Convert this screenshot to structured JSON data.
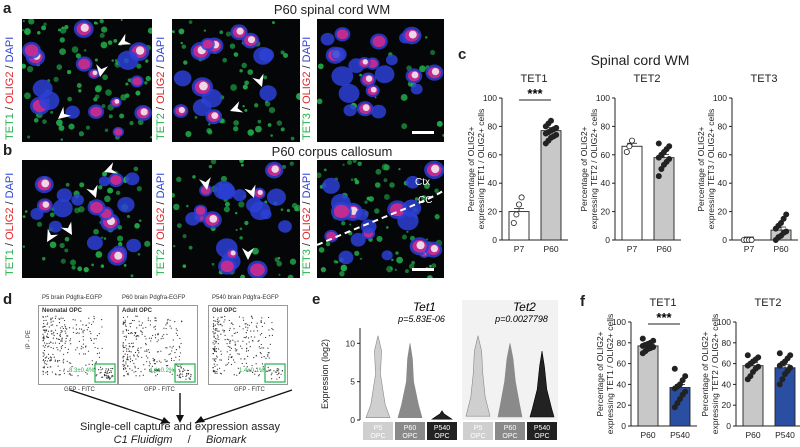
{
  "panels": {
    "a": {
      "letter": "a",
      "title": "P60 spinal cord WM",
      "labels": [
        {
          "g": "TET1",
          "r": "OLIG2",
          "b": "DAPI"
        },
        {
          "g": "TET2",
          "r": "OLIG2",
          "b": "DAPI"
        },
        {
          "g": "TET3",
          "r": "OLIG2",
          "b": "DAPI"
        }
      ]
    },
    "b": {
      "letter": "b",
      "title": "P60 corpus callosum",
      "labels": [
        {
          "g": "TET1",
          "r": "OLIG2",
          "b": "DAPI"
        },
        {
          "g": "TET2",
          "r": "OLIG2",
          "b": "DAPI"
        },
        {
          "g": "TET3",
          "r": "OLIG2",
          "b": "DAPI"
        }
      ],
      "ctx": "Ctx",
      "cc": "CC"
    },
    "c": {
      "letter": "c",
      "title": "Spinal cord WM"
    },
    "d": {
      "letter": "d",
      "plots": [
        {
          "header": "P5 brain Pdgfra-EGFP",
          "subtitle": "Neonatal OPC",
          "pct": "8.3±0.4%"
        },
        {
          "header": "P60 brain Pdgfra-EGFP",
          "subtitle": "Adult OPC",
          "pct": "4.4±0.2%"
        },
        {
          "header": "P540 brain Pdgfra-EGFP",
          "subtitle": "Old OPC",
          "pct": "1.4±0.1%"
        }
      ],
      "xaxis": "GFP - FITC",
      "yaxis": "IP - PE",
      "caption_line1": "Single-cell capture and expression assay",
      "caption_line2a": "C1 Fluidigm",
      "caption_sep": "/",
      "caption_line2b": "Biomark"
    },
    "e": {
      "letter": "e"
    },
    "f": {
      "letter": "f"
    }
  },
  "chart_data": [
    {
      "type": "bar",
      "panel": "c",
      "title": "TET1",
      "ylabel_line1": "Percentage of OLIG2+",
      "ylabel_line2": "expressing TET1 / OLIG2+ cells",
      "categories": [
        "P7",
        "P60"
      ],
      "values": [
        20,
        77
      ],
      "ylim": [
        0,
        100
      ],
      "yticks": [
        "0",
        "20",
        "40",
        "60",
        "80",
        "100"
      ],
      "significance": "***",
      "points": [
        [
          12,
          18,
          25,
          30
        ],
        [
          68,
          70,
          72,
          73,
          74,
          75,
          76,
          77,
          78,
          79,
          80,
          82,
          84
        ]
      ]
    },
    {
      "type": "bar",
      "panel": "c",
      "title": "TET2",
      "ylabel_line1": "Percentage of OLIG2+",
      "ylabel_line2": "expressing TET2 / OLIG2+ cells",
      "categories": [
        "P7",
        "P60"
      ],
      "values": [
        66,
        58
      ],
      "ylim": [
        0,
        100
      ],
      "yticks": [
        "0",
        "20",
        "40",
        "60",
        "80",
        "100"
      ],
      "points": [
        [
          62,
          66,
          70
        ],
        [
          45,
          50,
          53,
          55,
          57,
          58,
          60,
          62,
          64,
          66,
          68
        ]
      ]
    },
    {
      "type": "bar",
      "panel": "c",
      "title": "TET3",
      "ylabel_line1": "Percentage of OLIG2+",
      "ylabel_line2": "expressing TET3 / OLIG2+ cells",
      "categories": [
        "P7",
        "P60"
      ],
      "values": [
        0,
        7
      ],
      "ylim": [
        0,
        100
      ],
      "yticks": [
        "0",
        "20",
        "40",
        "60",
        "80",
        "100"
      ],
      "points": [
        [
          0,
          0,
          0,
          0
        ],
        [
          0,
          2,
          3,
          5,
          6,
          8,
          10,
          12,
          15,
          18
        ]
      ]
    },
    {
      "type": "violin",
      "panel": "e",
      "ylabel": "Expression (log2)",
      "ylim": [
        0,
        12
      ],
      "yticks": [
        "0",
        "5",
        "10"
      ],
      "groups": [
        {
          "title": "Tet1",
          "pvalue": "p=5.83E-06",
          "categories": [
            "P5 OPC",
            "P60 OPC",
            "P540 OPC"
          ]
        },
        {
          "title": "Tet2",
          "pvalue": "p=0.0027798",
          "categories": [
            "P5 OPC",
            "P60 OPC",
            "P540 OPC"
          ]
        }
      ]
    },
    {
      "type": "bar",
      "panel": "f",
      "title": "TET1",
      "ylabel_line1": "Percentage of OLIG2+",
      "ylabel_line2": "expressing TET1 / OLIG2+ cells",
      "categories": [
        "P60",
        "P540"
      ],
      "values": [
        77,
        37
      ],
      "ylim": [
        0,
        100
      ],
      "yticks": [
        "0",
        "20",
        "40",
        "60",
        "80",
        "100"
      ],
      "significance": "***",
      "points": [
        [
          70,
          72,
          74,
          75,
          76,
          77,
          78,
          79,
          80,
          82,
          84
        ],
        [
          18,
          22,
          26,
          30,
          33,
          36,
          38,
          40,
          44,
          48,
          55
        ]
      ]
    },
    {
      "type": "bar",
      "panel": "f",
      "title": "TET2",
      "ylabel_line1": "Percentage of OLIG2+",
      "ylabel_line2": "expressing TET2 / OLIG2+ cells",
      "categories": [
        "P60",
        "P540"
      ],
      "values": [
        58,
        56
      ],
      "ylim": [
        0,
        100
      ],
      "yticks": [
        "0",
        "20",
        "40",
        "60",
        "80",
        "100"
      ],
      "points": [
        [
          45,
          48,
          52,
          55,
          57,
          58,
          60,
          62,
          64,
          66,
          68
        ],
        [
          40,
          45,
          50,
          53,
          56,
          58,
          60,
          62,
          65,
          68,
          70
        ]
      ]
    }
  ],
  "colors": {
    "green": "#22b24c",
    "red": "#e0262a",
    "blue": "#2b3fd6",
    "bar_grey": "#c8c8c8",
    "bar_white": "#ffffff",
    "bar_blue": "#2a4ea1",
    "violin_light": "#cfcfcf",
    "violin_mid": "#8a8a8a",
    "violin_dark": "#222222"
  }
}
